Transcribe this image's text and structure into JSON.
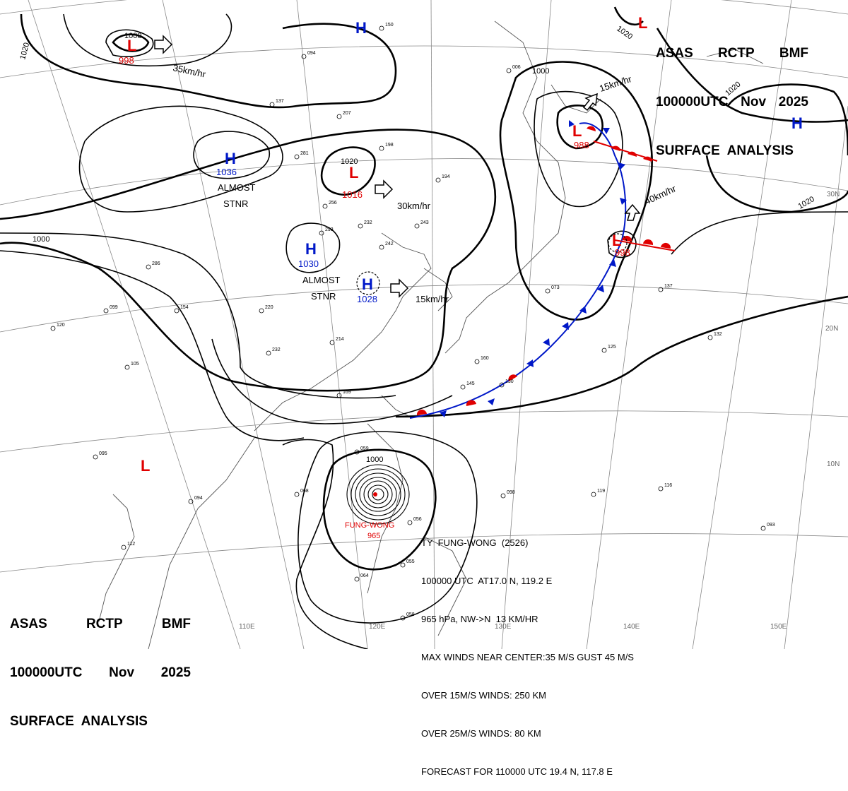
{
  "header": {
    "line1": [
      "ASAS",
      "RCTP",
      "BMF"
    ],
    "line2": [
      "100000UTC",
      "Nov",
      "2025"
    ],
    "line3": "SURFACE  ANALYSIS"
  },
  "pressure_centers": [
    {
      "type": "L",
      "value": "998"
    },
    {
      "type": "H",
      "value": "1036"
    },
    {
      "type": "L",
      "value": "1016"
    },
    {
      "type": "H",
      "value": "1030"
    },
    {
      "type": "H",
      "value": "1028"
    },
    {
      "type": "L",
      "value": "988"
    },
    {
      "type": "L",
      "value": "998"
    },
    {
      "type": "H",
      "value": ""
    },
    {
      "type": "H",
      "value": ""
    },
    {
      "type": "L",
      "value": ""
    },
    {
      "type": "L",
      "value": ""
    }
  ],
  "isobar_labels": [
    "1000",
    "1020",
    "1020",
    "1000",
    "1020",
    "1020",
    "1020",
    "1000",
    "1000"
  ],
  "motion_labels": [
    "35km/hr",
    "30km/hr",
    "15km/hr",
    "15km/hr",
    "40km/hr"
  ],
  "stationary_labels": [
    "ALMOST",
    "STNR",
    "ALMOST",
    "STNR"
  ],
  "grid_labels": {
    "lon": [
      "110E",
      "120E",
      "130E",
      "140E",
      "150E"
    ],
    "lat": [
      "30N",
      "20N",
      "10N"
    ]
  },
  "typhoon": {
    "name": "FUNG-WONG",
    "map_label": "FUNG-WONG",
    "map_pressure": "965",
    "line1": "TY  FUNG-WONG  (2526)",
    "line2": "100000 UTC  AT17.0 N, 119.2 E",
    "line3": "965 hPa, NW->N  13 KM/HR",
    "line4": "MAX WINDS NEAR CENTER:35 M/S GUST 45 M/S",
    "line5": "OVER 15M/S WINDS: 250 KM",
    "line6": "OVER 25M/S WINDS: 80 KM",
    "line7": "FORECAST FOR 110000 UTC 19.4 N, 117.8 E"
  },
  "station_samples": [
    "150",
    "094",
    "137",
    "207",
    "281",
    "198",
    "194",
    "256",
    "293",
    "232",
    "242",
    "243",
    "286",
    "154",
    "220",
    "099",
    "120",
    "105",
    "232",
    "214",
    "169",
    "160",
    "145",
    "130",
    "125",
    "073",
    "137",
    "132",
    "116",
    "098",
    "119",
    "093",
    "112",
    "059",
    "068",
    "094",
    "095",
    "064",
    "055",
    "058",
    "056",
    "006"
  ],
  "colors": {
    "high": "#0018c8",
    "low": "#e00000",
    "isobar": "#000000",
    "coast": "#555555",
    "grid": "#888888",
    "cold_front": "#0018c8",
    "warm_front": "#e00000"
  }
}
